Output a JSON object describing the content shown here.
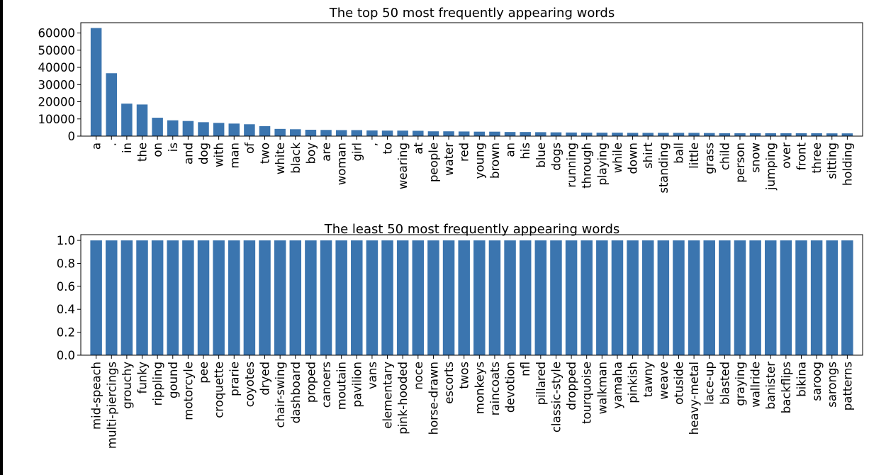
{
  "chart_data": [
    {
      "type": "bar",
      "title": "The top 50 most frequently appearing words",
      "xlabel": "",
      "ylabel": "",
      "ylim": [
        0,
        66000
      ],
      "yticks": [
        0,
        10000,
        20000,
        30000,
        40000,
        50000,
        60000
      ],
      "grid": false,
      "bar_color": "#3b75af",
      "categories": [
        "a",
        ".",
        "in",
        "the",
        "on",
        "is",
        "and",
        "dog",
        "with",
        "man",
        "of",
        "two",
        "white",
        "black",
        "boy",
        "are",
        "woman",
        "girl",
        ",",
        "to",
        "wearing",
        "at",
        "people",
        "water",
        "red",
        "young",
        "brown",
        "an",
        "his",
        "blue",
        "dogs",
        "running",
        "through",
        "playing",
        "while",
        "down",
        "shirt",
        "standing",
        "ball",
        "little",
        "grass",
        "child",
        "person",
        "snow",
        "jumping",
        "over",
        "front",
        "three",
        "sitting",
        "holding"
      ],
      "values": [
        62900,
        36600,
        18900,
        18400,
        10700,
        9200,
        8800,
        8100,
        7700,
        7300,
        6900,
        5800,
        4200,
        4000,
        3700,
        3600,
        3500,
        3500,
        3300,
        3200,
        3200,
        3100,
        2800,
        2800,
        2700,
        2600,
        2600,
        2400,
        2400,
        2300,
        2200,
        2100,
        2000,
        2000,
        2000,
        1900,
        1900,
        1900,
        1900,
        1900,
        1800,
        1700,
        1700,
        1700,
        1700,
        1700,
        1700,
        1700,
        1600,
        1600
      ]
    },
    {
      "type": "bar",
      "title": "The least 50 most frequently appearing words",
      "xlabel": "",
      "ylabel": "",
      "ylim": [
        0,
        1.05
      ],
      "yticks": [
        "0.0",
        "0.2",
        "0.4",
        "0.6",
        "0.8",
        "1.0"
      ],
      "grid": false,
      "bar_color": "#3b75af",
      "categories": [
        "mid-speach",
        "multi-piercings",
        "grouchy",
        "funky",
        "rippling",
        "gound",
        "motorcyle",
        "pee",
        "croquette",
        "prarie",
        "coyotes",
        "dryed",
        "chair-swing",
        "dashboard",
        "proped",
        "canoers",
        "moutain",
        "pavilion",
        "vans",
        "elementary",
        "pink-hooded",
        "noce",
        "horse-drawn",
        "escorts",
        "twos",
        "monkeys",
        "raincoats",
        "devotion",
        "nfl",
        "pillared",
        "classic-style",
        "dropped",
        "tourquoise",
        "walkman",
        "yamaha",
        "pinkish",
        "tawny",
        "weave",
        "otuside",
        "heavy-metal",
        "lace-up",
        "blasted",
        "graying",
        "wallride",
        "banister",
        "backflips",
        "bikina",
        "saroog",
        "sarongs",
        "patterns"
      ],
      "values": [
        1,
        1,
        1,
        1,
        1,
        1,
        1,
        1,
        1,
        1,
        1,
        1,
        1,
        1,
        1,
        1,
        1,
        1,
        1,
        1,
        1,
        1,
        1,
        1,
        1,
        1,
        1,
        1,
        1,
        1,
        1,
        1,
        1,
        1,
        1,
        1,
        1,
        1,
        1,
        1,
        1,
        1,
        1,
        1,
        1,
        1,
        1,
        1,
        1,
        1
      ]
    }
  ]
}
